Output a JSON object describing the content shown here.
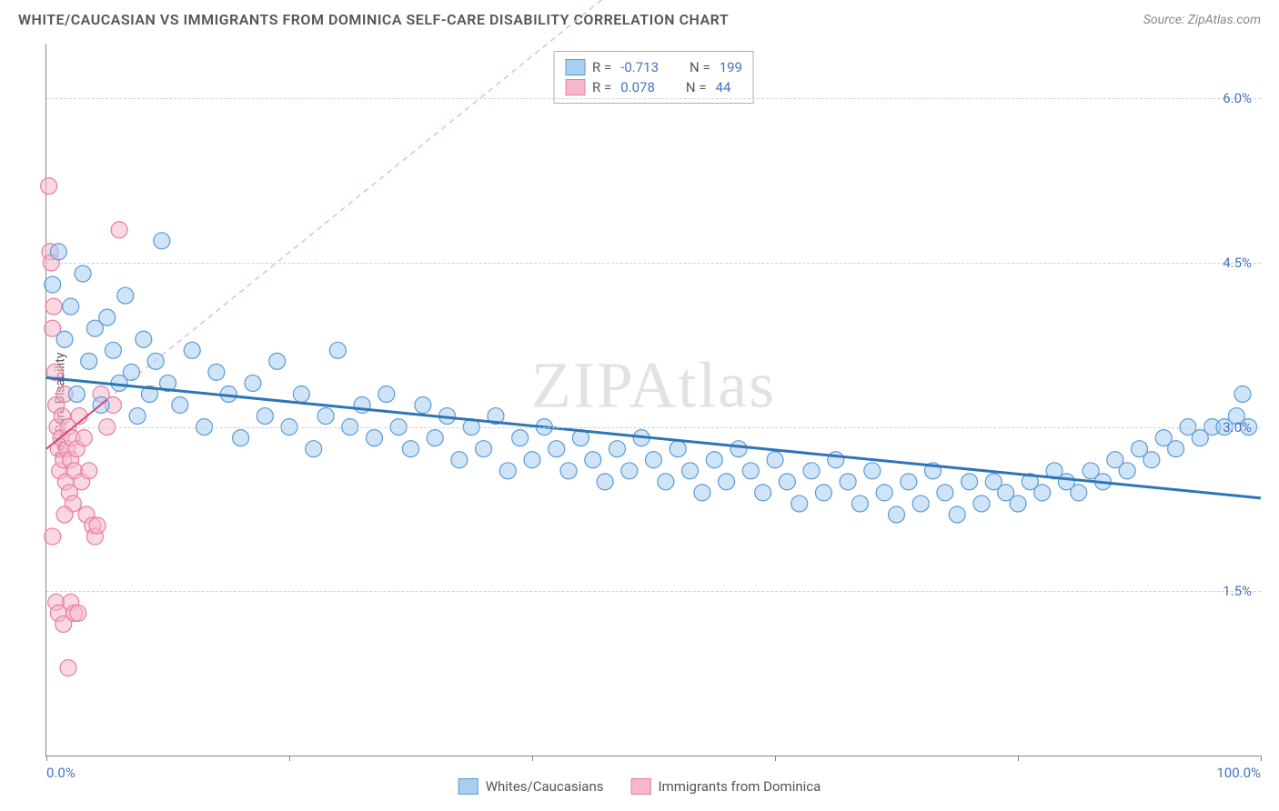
{
  "header": {
    "title": "WHITE/CAUCASIAN VS IMMIGRANTS FROM DOMINICA SELF-CARE DISABILITY CORRELATION CHART",
    "source": "Source: ZipAtlas.com"
  },
  "chart": {
    "type": "scatter",
    "ylabel": "Self-Care Disability",
    "watermark": "ZIPAtlas",
    "background_color": "#ffffff",
    "grid_color": "#d0d0d0",
    "axis_color": "#888888",
    "xlim": [
      0,
      100
    ],
    "ylim": [
      0,
      6.5
    ],
    "yticks": [
      1.5,
      3.0,
      4.5,
      6.0
    ],
    "ytick_labels": [
      "1.5%",
      "3.0%",
      "4.5%",
      "6.0%"
    ],
    "xticks": [
      0,
      20,
      40,
      60,
      80,
      100
    ],
    "xaxis_labels": {
      "left": "0.0%",
      "right": "100.0%"
    },
    "label_color": "#4472c4",
    "text_color": "#555555",
    "title_fontsize": 16,
    "label_fontsize": 14,
    "tick_fontsize": 15
  },
  "series": {
    "blue": {
      "name": "Whites/Caucasians",
      "color_fill": "#a8cef0",
      "color_stroke": "#5b9bd5",
      "fill_opacity": 0.55,
      "marker_radius": 9,
      "R": "-0.713",
      "N": "199",
      "trend": {
        "x1": 0,
        "y1": 3.45,
        "x2": 100,
        "y2": 2.35,
        "color": "#2e75b6",
        "width": 3
      },
      "points": [
        [
          0.5,
          4.3
        ],
        [
          1,
          4.6
        ],
        [
          1.5,
          3.8
        ],
        [
          2,
          4.1
        ],
        [
          2.5,
          3.3
        ],
        [
          3,
          4.4
        ],
        [
          3.5,
          3.6
        ],
        [
          4,
          3.9
        ],
        [
          4.5,
          3.2
        ],
        [
          5,
          4.0
        ],
        [
          5.5,
          3.7
        ],
        [
          6,
          3.4
        ],
        [
          6.5,
          4.2
        ],
        [
          7,
          3.5
        ],
        [
          7.5,
          3.1
        ],
        [
          8,
          3.8
        ],
        [
          8.5,
          3.3
        ],
        [
          9,
          3.6
        ],
        [
          9.5,
          4.7
        ],
        [
          10,
          3.4
        ],
        [
          11,
          3.2
        ],
        [
          12,
          3.7
        ],
        [
          13,
          3.0
        ],
        [
          14,
          3.5
        ],
        [
          15,
          3.3
        ],
        [
          16,
          2.9
        ],
        [
          17,
          3.4
        ],
        [
          18,
          3.1
        ],
        [
          19,
          3.6
        ],
        [
          20,
          3.0
        ],
        [
          21,
          3.3
        ],
        [
          22,
          2.8
        ],
        [
          23,
          3.1
        ],
        [
          24,
          3.7
        ],
        [
          25,
          3.0
        ],
        [
          26,
          3.2
        ],
        [
          27,
          2.9
        ],
        [
          28,
          3.3
        ],
        [
          29,
          3.0
        ],
        [
          30,
          2.8
        ],
        [
          31,
          3.2
        ],
        [
          32,
          2.9
        ],
        [
          33,
          3.1
        ],
        [
          34,
          2.7
        ],
        [
          35,
          3.0
        ],
        [
          36,
          2.8
        ],
        [
          37,
          3.1
        ],
        [
          38,
          2.6
        ],
        [
          39,
          2.9
        ],
        [
          40,
          2.7
        ],
        [
          41,
          3.0
        ],
        [
          42,
          2.8
        ],
        [
          43,
          2.6
        ],
        [
          44,
          2.9
        ],
        [
          45,
          2.7
        ],
        [
          46,
          2.5
        ],
        [
          47,
          2.8
        ],
        [
          48,
          2.6
        ],
        [
          49,
          2.9
        ],
        [
          50,
          2.7
        ],
        [
          51,
          2.5
        ],
        [
          52,
          2.8
        ],
        [
          53,
          2.6
        ],
        [
          54,
          2.4
        ],
        [
          55,
          2.7
        ],
        [
          56,
          2.5
        ],
        [
          57,
          2.8
        ],
        [
          58,
          2.6
        ],
        [
          59,
          2.4
        ],
        [
          60,
          2.7
        ],
        [
          61,
          2.5
        ],
        [
          62,
          2.3
        ],
        [
          63,
          2.6
        ],
        [
          64,
          2.4
        ],
        [
          65,
          2.7
        ],
        [
          66,
          2.5
        ],
        [
          67,
          2.3
        ],
        [
          68,
          2.6
        ],
        [
          69,
          2.4
        ],
        [
          70,
          2.2
        ],
        [
          71,
          2.5
        ],
        [
          72,
          2.3
        ],
        [
          73,
          2.6
        ],
        [
          74,
          2.4
        ],
        [
          75,
          2.2
        ],
        [
          76,
          2.5
        ],
        [
          77,
          2.3
        ],
        [
          78,
          2.5
        ],
        [
          79,
          2.4
        ],
        [
          80,
          2.3
        ],
        [
          81,
          2.5
        ],
        [
          82,
          2.4
        ],
        [
          83,
          2.6
        ],
        [
          84,
          2.5
        ],
        [
          85,
          2.4
        ],
        [
          86,
          2.6
        ],
        [
          87,
          2.5
        ],
        [
          88,
          2.7
        ],
        [
          89,
          2.6
        ],
        [
          90,
          2.8
        ],
        [
          91,
          2.7
        ],
        [
          92,
          2.9
        ],
        [
          93,
          2.8
        ],
        [
          94,
          3.0
        ],
        [
          95,
          2.9
        ],
        [
          96,
          3.0
        ],
        [
          97,
          3.0
        ],
        [
          98,
          3.1
        ],
        [
          98.5,
          3.3
        ],
        [
          99,
          3.0
        ]
      ]
    },
    "pink": {
      "name": "Immigrants from Dominica",
      "color_fill": "#f5b8cb",
      "color_stroke": "#e87ba4",
      "fill_opacity": 0.55,
      "marker_radius": 9,
      "R": "0.078",
      "N": "44",
      "trend": {
        "x1": 0,
        "y1": 2.8,
        "x2": 5,
        "y2": 3.25,
        "color": "#d6457c",
        "width": 2
      },
      "trend_ext": {
        "x1": 5,
        "y1": 3.25,
        "x2": 58,
        "y2": 8.0,
        "color": "#f0b8c8",
        "width": 1.5,
        "dash": "6,5"
      },
      "points": [
        [
          0.2,
          5.2
        ],
        [
          0.3,
          4.6
        ],
        [
          0.4,
          4.5
        ],
        [
          0.5,
          3.9
        ],
        [
          0.6,
          4.1
        ],
        [
          0.7,
          3.5
        ],
        [
          0.8,
          3.2
        ],
        [
          0.9,
          3.0
        ],
        [
          1.0,
          2.8
        ],
        [
          1.1,
          2.6
        ],
        [
          1.2,
          2.9
        ],
        [
          1.3,
          3.1
        ],
        [
          1.4,
          2.7
        ],
        [
          1.5,
          3.3
        ],
        [
          1.6,
          2.5
        ],
        [
          1.7,
          2.8
        ],
        [
          1.8,
          3.0
        ],
        [
          1.9,
          2.4
        ],
        [
          2.0,
          2.7
        ],
        [
          2.1,
          2.9
        ],
        [
          2.2,
          2.3
        ],
        [
          2.3,
          2.6
        ],
        [
          2.5,
          2.8
        ],
        [
          2.7,
          3.1
        ],
        [
          2.9,
          2.5
        ],
        [
          3.1,
          2.9
        ],
        [
          3.3,
          2.2
        ],
        [
          3.5,
          2.6
        ],
        [
          3.8,
          2.1
        ],
        [
          4.0,
          2.0
        ],
        [
          4.2,
          2.1
        ],
        [
          4.5,
          3.3
        ],
        [
          5.0,
          3.0
        ],
        [
          5.5,
          3.2
        ],
        [
          6.0,
          4.8
        ],
        [
          0.8,
          1.4
        ],
        [
          1.0,
          1.3
        ],
        [
          1.4,
          1.2
        ],
        [
          1.8,
          0.8
        ],
        [
          2.0,
          1.4
        ],
        [
          2.3,
          1.3
        ],
        [
          2.6,
          1.3
        ],
        [
          0.5,
          2.0
        ],
        [
          1.5,
          2.2
        ]
      ]
    }
  },
  "legend_top": {
    "rows": [
      {
        "swatch_fill": "#a8cef0",
        "swatch_stroke": "#5b9bd5",
        "R_label": "R =",
        "R_val": "-0.713",
        "N_label": "N =",
        "N_val": "199"
      },
      {
        "swatch_fill": "#f5b8cb",
        "swatch_stroke": "#e87ba4",
        "R_label": "R =",
        "R_val": "0.078",
        "N_label": "N =",
        "N_val": "44"
      }
    ]
  },
  "legend_bottom": {
    "items": [
      {
        "swatch_fill": "#a8cef0",
        "swatch_stroke": "#5b9bd5",
        "label": "Whites/Caucasians"
      },
      {
        "swatch_fill": "#f5b8cb",
        "swatch_stroke": "#e87ba4",
        "label": "Immigrants from Dominica"
      }
    ]
  }
}
